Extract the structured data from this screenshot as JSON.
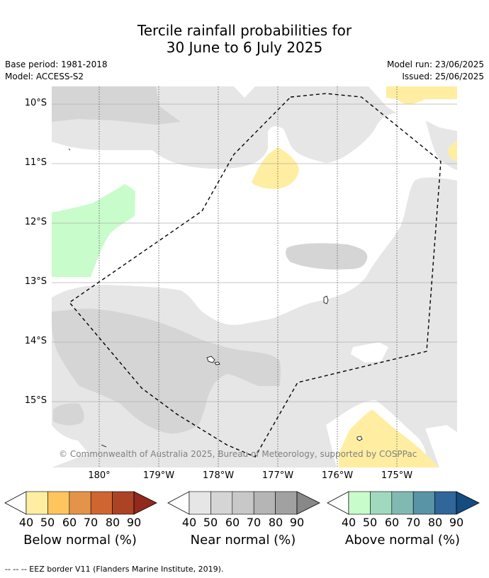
{
  "title": {
    "line1": "Tercile rainfall probabilities for",
    "line2": "30 June to 6 July 2025"
  },
  "meta": {
    "base_period": "Base period: 1981-2018",
    "model": "Model: ACCESS-S2",
    "model_run": "Model run: 23/06/2025",
    "issued": "Issued: 25/06/2025"
  },
  "map": {
    "lat_labels": [
      "10°S",
      "11°S",
      "12°S",
      "13°S",
      "14°S",
      "15°S"
    ],
    "lon_labels": [
      "180°",
      "179°W",
      "178°W",
      "177°W",
      "176°W",
      "175°W"
    ],
    "copyright": "© Commonwealth of Australia 2025, Bureau of Meteorology, supported by COSPPac"
  },
  "colorbars": {
    "ticks": [
      "40",
      "50",
      "60",
      "70",
      "80",
      "90"
    ],
    "below": {
      "title": "Below normal (%)",
      "colors": [
        "#ffeea1",
        "#fec55f",
        "#e3944a",
        "#cf6531",
        "#ab4324",
        "#93281c"
      ]
    },
    "near": {
      "title": "Near normal (%)",
      "colors": [
        "#e6e6e6",
        "#d5d5d5",
        "#c8c8c8",
        "#b5b5b5",
        "#a1a1a1",
        "#888888"
      ]
    },
    "above": {
      "title": "Above normal (%)",
      "colors": [
        "#c8fccb",
        "#a1d9be",
        "#80b9b2",
        "#5993a6",
        "#306699",
        "#134c7f"
      ]
    }
  },
  "footnote": "--  --  -- EEZ border V11 (Flanders Marine Institute, 2019)."
}
